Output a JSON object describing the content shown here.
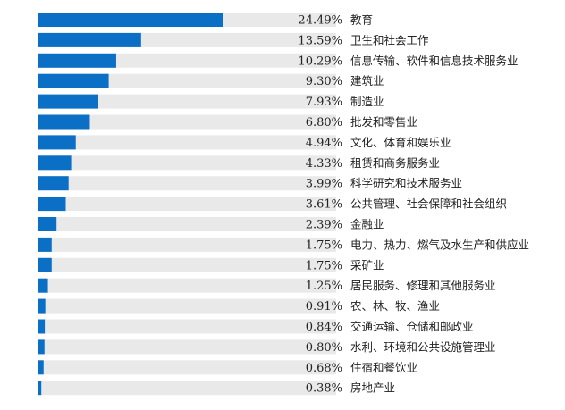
{
  "chart_data": {
    "type": "bar",
    "orientation": "horizontal",
    "unit": "%",
    "colors": {
      "bar": "#0b6fc6",
      "track": "#e9e9e9"
    },
    "categories": [
      "教育",
      "卫生和社会工作",
      "信息传输、软件和信息技术服务业",
      "建筑业",
      "制造业",
      "批发和零售业",
      "文化、体育和娱乐业",
      "租赁和商务服务业",
      "科学研究和技术服务业",
      "公共管理、社会保障和社会组织",
      "金融业",
      "电力、热力、燃气及水生产和供应业",
      "采矿业",
      "居民服务、修理和其他服务业",
      "农、林、牧、渔业",
      "交通运输、仓储和邮政业",
      "水利、环境和公共设施管理业",
      "住宿和餐饮业",
      "房地产业"
    ],
    "values": [
      24.49,
      13.59,
      10.29,
      9.3,
      7.93,
      6.8,
      4.94,
      4.33,
      3.99,
      3.61,
      2.39,
      1.75,
      1.75,
      1.25,
      0.91,
      0.84,
      0.8,
      0.68,
      0.38
    ],
    "value_labels": [
      "24.49%",
      "13.59%",
      "10.29%",
      "9.30%",
      "7.93%",
      "6.80%",
      "4.94%",
      "4.33%",
      "3.99%",
      "3.61%",
      "2.39%",
      "1.75%",
      "1.75%",
      "1.25%",
      "0.91%",
      "0.84%",
      "0.80%",
      "0.68%",
      "0.38%"
    ]
  }
}
